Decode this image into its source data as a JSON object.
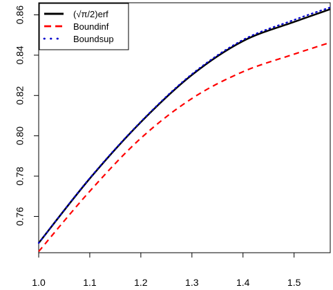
{
  "chart_data": {
    "type": "line",
    "title": "",
    "xlabel": "",
    "ylabel": "",
    "xlim": [
      1.0,
      1.5708
    ],
    "ylim": [
      0.742,
      0.866
    ],
    "x_ticks": [
      1.0,
      1.1,
      1.2,
      1.3,
      1.4,
      1.5
    ],
    "x_tick_labels": [
      "1.0",
      "1.1",
      "1.2",
      "1.3",
      "1.4",
      "1.5"
    ],
    "y_ticks": [
      0.76,
      0.78,
      0.8,
      0.82,
      0.84,
      0.86
    ],
    "y_tick_labels": [
      "0.76",
      "0.78",
      "0.80",
      "0.82",
      "0.84",
      "0.86"
    ],
    "grid": false,
    "legend_position": "top-left",
    "x": [
      1.0,
      1.1,
      1.2,
      1.3,
      1.4,
      1.5,
      1.5708
    ],
    "series": [
      {
        "name": "(√π/2)erf",
        "color": "#000000",
        "style": "solid",
        "values": [
          0.7468,
          0.7788,
          0.8068,
          0.8302,
          0.847,
          0.8565,
          0.8628
        ]
      },
      {
        "name": "Boundinf",
        "color": "#ff0000",
        "style": "dashed",
        "values": [
          0.7426,
          0.7725,
          0.7988,
          0.8185,
          0.8318,
          0.8405,
          0.8463
        ]
      },
      {
        "name": "Boundsup",
        "color": "#0000cc",
        "style": "dotted",
        "values": [
          0.7468,
          0.779,
          0.807,
          0.8306,
          0.8476,
          0.8575,
          0.8637
        ]
      }
    ]
  }
}
